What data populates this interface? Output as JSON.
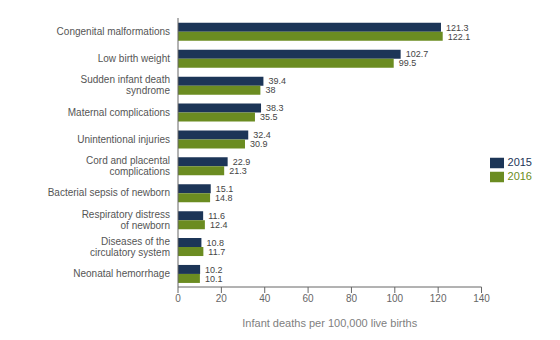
{
  "chart_data": {
    "type": "bar",
    "orientation": "horizontal",
    "categories": [
      "Neonatal hemorrhage",
      "Diseases of the\ncirculatory system",
      "Respiratory distress\nof newborn",
      "Bacterial sepsis of newborn",
      "Cord and placental\ncomplications",
      "Unintentional injuries",
      "Maternal complications",
      "Sudden infant death\nsyndrome",
      "Low birth weight",
      "Congenital malformations"
    ],
    "series": [
      {
        "name": "2015",
        "color": "#1c3557",
        "values": [
          10.2,
          10.8,
          11.6,
          15.1,
          22.9,
          32.4,
          38.3,
          39.4,
          102.7,
          121.3
        ]
      },
      {
        "name": "2016",
        "color": "#6b8c21",
        "values": [
          10.1,
          11.7,
          12.4,
          14.8,
          21.3,
          30.9,
          35.5,
          38.0,
          99.5,
          122.1
        ]
      }
    ],
    "xlabel": "Infant deaths per 100,000 live births",
    "xlim": [
      0,
      140
    ],
    "xticks": [
      0,
      20,
      40,
      60,
      80,
      100,
      120,
      140
    ],
    "grid": false,
    "legend": "right",
    "data_labels": true
  }
}
